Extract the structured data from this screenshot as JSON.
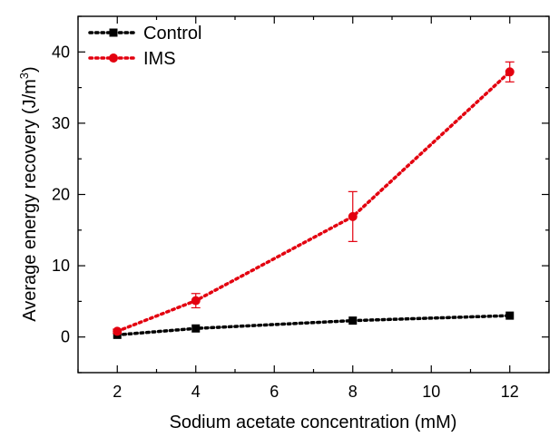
{
  "chart_data": {
    "type": "line",
    "xlabel": "Sodium acetate concentration (mM)",
    "ylabel_main": "Average energy recovery (J/m",
    "ylabel_sup": "3",
    "ylabel_close": ")",
    "xlim": [
      1,
      13
    ],
    "ylim": [
      -5,
      45
    ],
    "x_ticks": [
      2,
      4,
      6,
      8,
      10,
      12
    ],
    "x_tick_labels": [
      "2",
      "4",
      "6",
      "8",
      "10",
      "12"
    ],
    "y_ticks": [
      0,
      10,
      20,
      30,
      40
    ],
    "y_tick_labels": [
      "0",
      "10",
      "20",
      "30",
      "40"
    ],
    "legend_position": "top-left",
    "series": [
      {
        "name": "Control",
        "color": "#000000",
        "marker": "square",
        "line_style": "dotted",
        "x": [
          2,
          4,
          8,
          12
        ],
        "y": [
          0.3,
          1.2,
          2.3,
          3.0
        ],
        "error": [
          0,
          0,
          0,
          0
        ]
      },
      {
        "name": "IMS",
        "color": "#e3000f",
        "marker": "circle",
        "line_style": "dotted",
        "x": [
          2,
          4,
          8,
          12
        ],
        "y": [
          0.8,
          5.1,
          16.9,
          37.2
        ],
        "error": [
          0.3,
          1.0,
          3.5,
          1.4
        ]
      }
    ]
  }
}
